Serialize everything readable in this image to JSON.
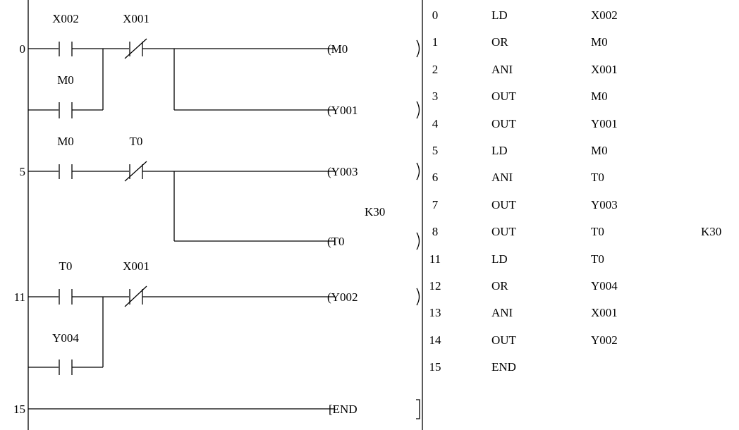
{
  "ladder": {
    "step_numbers": [
      "0",
      "5",
      "11",
      "15"
    ],
    "rung0": {
      "contact1": "X002",
      "contact2": "X001",
      "parallel": "M0",
      "coil1": "(M0",
      "coil2": "(Y001"
    },
    "rung5": {
      "contact1": "M0",
      "contact2": "T0",
      "coil1": "(Y003",
      "timer_preset": "K30",
      "coil2": "(T0"
    },
    "rung11": {
      "contact1": "T0",
      "contact2": "X001",
      "parallel": "Y004",
      "coil1": "(Y002"
    },
    "rung15": {
      "instruction": "[END"
    }
  },
  "instruction_list": [
    {
      "step": "0",
      "instr": "LD",
      "operand": "X002",
      "const": ""
    },
    {
      "step": "1",
      "instr": "OR",
      "operand": "M0",
      "const": ""
    },
    {
      "step": "2",
      "instr": "ANI",
      "operand": "X001",
      "const": ""
    },
    {
      "step": "3",
      "instr": "OUT",
      "operand": "M0",
      "const": ""
    },
    {
      "step": "4",
      "instr": "OUT",
      "operand": "Y001",
      "const": ""
    },
    {
      "step": "5",
      "instr": "LD",
      "operand": "M0",
      "const": ""
    },
    {
      "step": "6",
      "instr": "ANI",
      "operand": "T0",
      "const": ""
    },
    {
      "step": "7",
      "instr": "OUT",
      "operand": "Y003",
      "const": ""
    },
    {
      "step": "8",
      "instr": "OUT",
      "operand": "T0",
      "const": "K30"
    },
    {
      "step": "11",
      "instr": "LD",
      "operand": "T0",
      "const": ""
    },
    {
      "step": "12",
      "instr": "OR",
      "operand": "Y004",
      "const": ""
    },
    {
      "step": "13",
      "instr": "ANI",
      "operand": "X001",
      "const": ""
    },
    {
      "step": "14",
      "instr": "OUT",
      "operand": "Y002",
      "const": ""
    },
    {
      "step": "15",
      "instr": "END",
      "operand": "",
      "const": ""
    }
  ]
}
